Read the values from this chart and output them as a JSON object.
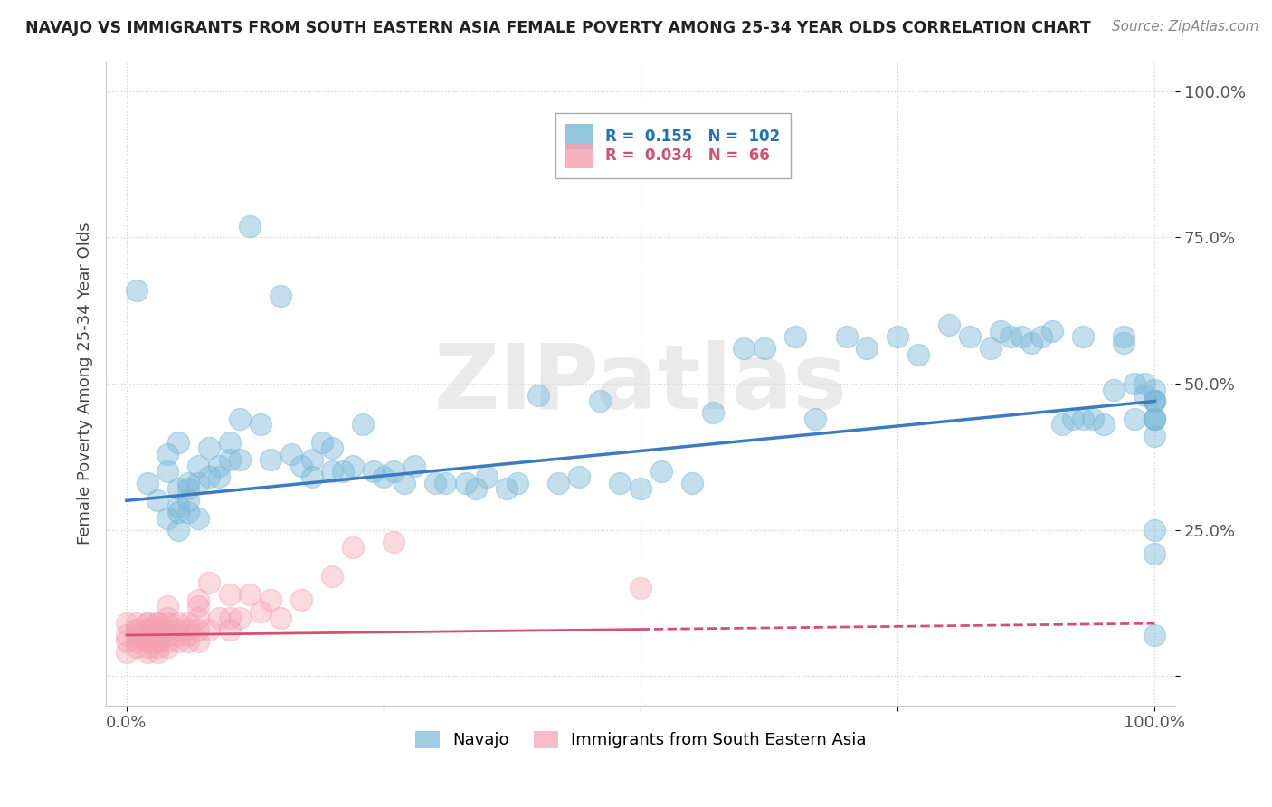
{
  "title": "NAVAJO VS IMMIGRANTS FROM SOUTH EASTERN ASIA FEMALE POVERTY AMONG 25-34 YEAR OLDS CORRELATION CHART",
  "source": "Source: ZipAtlas.com",
  "ylabel": "Female Poverty Among 25-34 Year Olds",
  "xlim": [
    -0.02,
    1.02
  ],
  "ylim": [
    -0.05,
    1.05
  ],
  "xticks": [
    0.0,
    0.25,
    0.5,
    0.75,
    1.0
  ],
  "yticks": [
    0.0,
    0.25,
    0.5,
    0.75,
    1.0
  ],
  "xticklabels": [
    "0.0%",
    "",
    "",
    "",
    "100.0%"
  ],
  "yticklabels": [
    "",
    "25.0%",
    "50.0%",
    "75.0%",
    "100.0%"
  ],
  "navajo_color": "#7ab8d9",
  "immigrant_color": "#f4a0b0",
  "navajo_R": 0.155,
  "navajo_N": 102,
  "immigrant_R": 0.034,
  "immigrant_N": 66,
  "navajo_line_color": "#3d7bbf",
  "immigrant_line_color": "#d45070",
  "navajo_line_start_y": 0.3,
  "navajo_line_end_y": 0.47,
  "immigrant_line_start_y": 0.07,
  "immigrant_line_end_y": 0.09,
  "watermark": "ZIPatlas",
  "background_color": "#ffffff",
  "grid_color": "#cccccc",
  "navajo_x": [
    0.01,
    0.02,
    0.03,
    0.04,
    0.04,
    0.04,
    0.05,
    0.05,
    0.05,
    0.05,
    0.05,
    0.06,
    0.06,
    0.06,
    0.06,
    0.07,
    0.07,
    0.07,
    0.08,
    0.08,
    0.09,
    0.09,
    0.1,
    0.1,
    0.11,
    0.11,
    0.12,
    0.13,
    0.14,
    0.15,
    0.16,
    0.17,
    0.18,
    0.18,
    0.19,
    0.2,
    0.2,
    0.21,
    0.22,
    0.23,
    0.24,
    0.25,
    0.26,
    0.27,
    0.28,
    0.3,
    0.31,
    0.33,
    0.34,
    0.35,
    0.37,
    0.38,
    0.4,
    0.42,
    0.44,
    0.46,
    0.48,
    0.5,
    0.52,
    0.55,
    0.57,
    0.6,
    0.62,
    0.65,
    0.67,
    0.7,
    0.72,
    0.75,
    0.77,
    0.8,
    0.82,
    0.84,
    0.85,
    0.86,
    0.87,
    0.88,
    0.89,
    0.9,
    0.91,
    0.92,
    0.93,
    0.93,
    0.94,
    0.95,
    0.96,
    0.97,
    0.97,
    0.98,
    0.98,
    0.99,
    0.99,
    1.0,
    1.0,
    1.0,
    1.0,
    1.0,
    1.0,
    1.0,
    1.0,
    1.0,
    1.0,
    1.0
  ],
  "navajo_y": [
    0.66,
    0.33,
    0.3,
    0.38,
    0.35,
    0.27,
    0.29,
    0.25,
    0.28,
    0.32,
    0.4,
    0.32,
    0.3,
    0.33,
    0.28,
    0.36,
    0.33,
    0.27,
    0.39,
    0.34,
    0.36,
    0.34,
    0.4,
    0.37,
    0.44,
    0.37,
    0.77,
    0.43,
    0.37,
    0.65,
    0.38,
    0.36,
    0.37,
    0.34,
    0.4,
    0.35,
    0.39,
    0.35,
    0.36,
    0.43,
    0.35,
    0.34,
    0.35,
    0.33,
    0.36,
    0.33,
    0.33,
    0.33,
    0.32,
    0.34,
    0.32,
    0.33,
    0.48,
    0.33,
    0.34,
    0.47,
    0.33,
    0.32,
    0.35,
    0.33,
    0.45,
    0.56,
    0.56,
    0.58,
    0.44,
    0.58,
    0.56,
    0.58,
    0.55,
    0.6,
    0.58,
    0.56,
    0.59,
    0.58,
    0.58,
    0.57,
    0.58,
    0.59,
    0.43,
    0.44,
    0.44,
    0.58,
    0.44,
    0.43,
    0.49,
    0.57,
    0.58,
    0.44,
    0.5,
    0.5,
    0.48,
    0.44,
    0.44,
    0.47,
    0.49,
    0.47,
    0.47,
    0.44,
    0.21,
    0.07,
    0.41,
    0.25
  ],
  "immigrant_x": [
    0.0,
    0.0,
    0.0,
    0.0,
    0.01,
    0.01,
    0.01,
    0.01,
    0.01,
    0.01,
    0.02,
    0.02,
    0.02,
    0.02,
    0.02,
    0.02,
    0.02,
    0.02,
    0.02,
    0.02,
    0.03,
    0.03,
    0.03,
    0.03,
    0.03,
    0.03,
    0.03,
    0.03,
    0.03,
    0.03,
    0.04,
    0.04,
    0.04,
    0.04,
    0.04,
    0.04,
    0.04,
    0.05,
    0.05,
    0.05,
    0.05,
    0.06,
    0.06,
    0.06,
    0.06,
    0.07,
    0.07,
    0.07,
    0.07,
    0.07,
    0.08,
    0.08,
    0.09,
    0.1,
    0.1,
    0.1,
    0.11,
    0.12,
    0.13,
    0.14,
    0.15,
    0.17,
    0.2,
    0.22,
    0.26,
    0.5
  ],
  "immigrant_y": [
    0.07,
    0.04,
    0.06,
    0.09,
    0.08,
    0.06,
    0.07,
    0.09,
    0.05,
    0.08,
    0.08,
    0.07,
    0.09,
    0.06,
    0.08,
    0.06,
    0.07,
    0.09,
    0.05,
    0.04,
    0.08,
    0.07,
    0.09,
    0.06,
    0.08,
    0.07,
    0.09,
    0.06,
    0.05,
    0.04,
    0.08,
    0.07,
    0.09,
    0.1,
    0.06,
    0.12,
    0.05,
    0.08,
    0.07,
    0.09,
    0.06,
    0.08,
    0.07,
    0.09,
    0.06,
    0.1,
    0.08,
    0.13,
    0.06,
    0.12,
    0.08,
    0.16,
    0.1,
    0.1,
    0.08,
    0.14,
    0.1,
    0.14,
    0.11,
    0.13,
    0.1,
    0.13,
    0.17,
    0.22,
    0.23,
    0.15
  ]
}
